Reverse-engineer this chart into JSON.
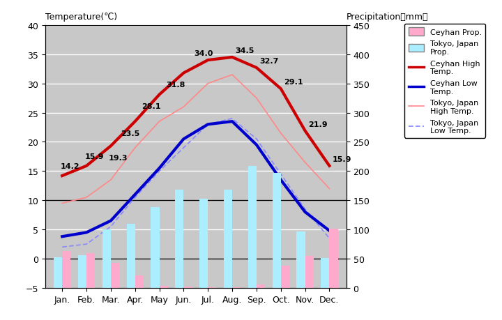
{
  "months": [
    "Jan.",
    "Feb.",
    "Mar.",
    "Apr.",
    "May",
    "Jun.",
    "Jul.",
    "Aug.",
    "Sep.",
    "Oct.",
    "Nov.",
    "Dec."
  ],
  "ceyhan_high": [
    14.2,
    15.9,
    19.3,
    23.5,
    28.1,
    31.8,
    34.0,
    34.5,
    32.7,
    29.1,
    21.9,
    15.9
  ],
  "ceyhan_low": [
    3.8,
    4.5,
    6.5,
    11.0,
    15.5,
    20.5,
    23.0,
    23.5,
    19.5,
    13.5,
    8.0,
    4.8
  ],
  "tokyo_high": [
    9.5,
    10.5,
    13.5,
    19.0,
    23.5,
    26.0,
    30.0,
    31.5,
    27.5,
    21.5,
    16.5,
    12.0
  ],
  "tokyo_low": [
    2.0,
    2.5,
    5.5,
    10.5,
    15.0,
    19.0,
    23.0,
    24.0,
    20.5,
    14.5,
    8.5,
    3.5
  ],
  "ceyhan_precip_mm": [
    63,
    60,
    43,
    21,
    4,
    2,
    1,
    1,
    6,
    38,
    55,
    101
  ],
  "tokyo_precip_mm": [
    52,
    56,
    100,
    110,
    138,
    168,
    153,
    168,
    209,
    197,
    97,
    51
  ],
  "background_color": "#c8c8c8",
  "ceyhan_high_color": "#cc0000",
  "ceyhan_low_color": "#0000cc",
  "tokyo_high_color": "#ff8888",
  "tokyo_low_color": "#8888ff",
  "ceyhan_precip_color": "#ffaacc",
  "tokyo_precip_color": "#aaeeff",
  "ylim_temp": [
    -5,
    40
  ],
  "ylim_precip": [
    0,
    450
  ],
  "yticks_temp": [
    -5,
    0,
    5,
    10,
    15,
    20,
    25,
    30,
    35,
    40
  ],
  "yticks_precip": [
    0,
    50,
    100,
    150,
    200,
    250,
    300,
    350,
    400,
    450
  ],
  "grid_lines": [
    0,
    5,
    10,
    15,
    20,
    25,
    30,
    35,
    40
  ],
  "hlines_black": [
    0,
    10
  ]
}
